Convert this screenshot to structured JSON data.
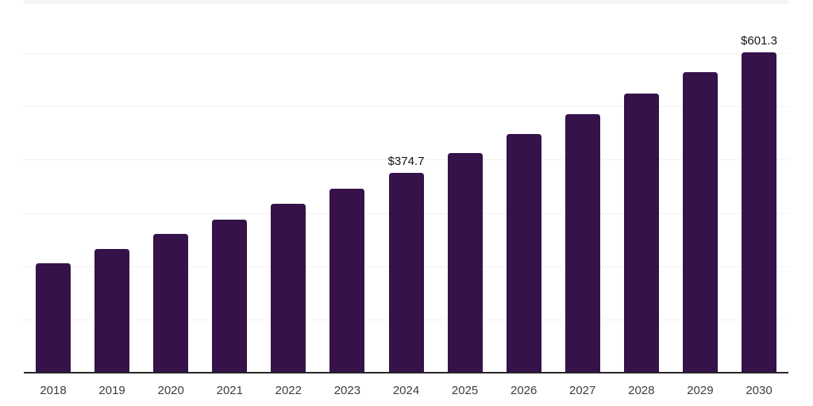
{
  "chart_data": {
    "type": "bar",
    "title": "",
    "xlabel": "",
    "ylabel": "",
    "categories": [
      "2018",
      "2019",
      "2020",
      "2021",
      "2022",
      "2023",
      "2024",
      "2025",
      "2026",
      "2027",
      "2028",
      "2029",
      "2030"
    ],
    "values": [
      205,
      232,
      260,
      288,
      317,
      346,
      374.7,
      412,
      448,
      485,
      525,
      565,
      601.3
    ],
    "data_labels": [
      {
        "index": 6,
        "text": "$374.7"
      },
      {
        "index": 12,
        "text": "$601.3"
      }
    ],
    "ylim": [
      0,
      700
    ],
    "gridline_step": 100,
    "grid": "horizontal",
    "legend": "none",
    "y_tick_labels_visible": false,
    "bar_color": "#35124a",
    "background": "#ffffff",
    "gridline_color": "#f2f2f2",
    "top_band_color": "#f4f4f4",
    "axis_line_color": "#262626",
    "tick_label_color": "#3d3d3d",
    "data_label_color": "#141414"
  }
}
